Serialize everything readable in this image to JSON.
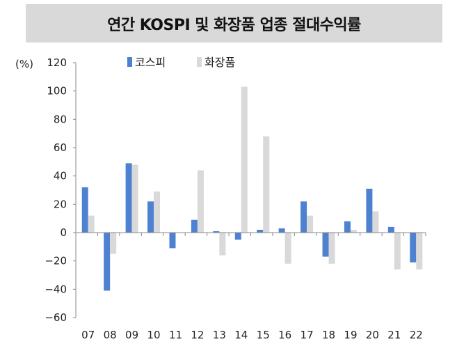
{
  "header": {
    "title": "연간 KOSPI 및 화장품 업종 절대수익률"
  },
  "chart_data": {
    "type": "bar",
    "title": "연간 KOSPI 및 화장품 업종 절대수익률",
    "ylabel": "(%)",
    "xlabel": "",
    "ylim": [
      -60,
      120
    ],
    "yticks": [
      120,
      100,
      80,
      60,
      40,
      20,
      0,
      -20,
      -40,
      -60
    ],
    "categories": [
      "07",
      "08",
      "09",
      "10",
      "11",
      "12",
      "13",
      "14",
      "15",
      "16",
      "17",
      "18",
      "19",
      "20",
      "21",
      "22"
    ],
    "series": [
      {
        "name": "코스피",
        "color": "#4f81d1",
        "values": [
          32,
          -41,
          49,
          22,
          -11,
          9,
          1,
          -5,
          2,
          3,
          22,
          -17,
          8,
          31,
          4,
          -21
        ]
      },
      {
        "name": "화장품",
        "color": "#d9d9d9",
        "values": [
          12,
          -15,
          48,
          29,
          0,
          44,
          -16,
          103,
          68,
          -22,
          12,
          -22,
          2,
          15,
          -26,
          -26
        ]
      }
    ],
    "legend": "top-left",
    "grid": false
  }
}
